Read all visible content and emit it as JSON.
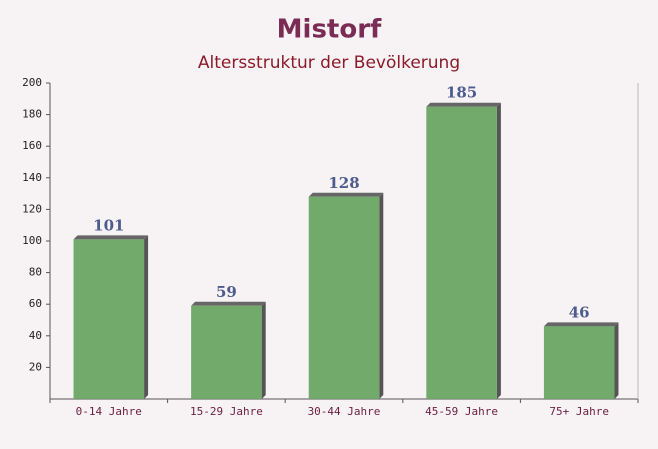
{
  "chart_data": {
    "type": "bar",
    "title": "Mistorf",
    "subtitle": "Altersstruktur der Bevölkerung",
    "categories": [
      "0-14 Jahre",
      "15-29 Jahre",
      "30-44 Jahre",
      "45-59 Jahre",
      "75+ Jahre"
    ],
    "values": [
      101,
      59,
      128,
      185,
      46
    ],
    "color": "#6aa564",
    "ylim": [
      0,
      200
    ],
    "yticks": [
      20,
      40,
      60,
      80,
      100,
      120,
      140,
      160,
      180,
      200
    ]
  }
}
